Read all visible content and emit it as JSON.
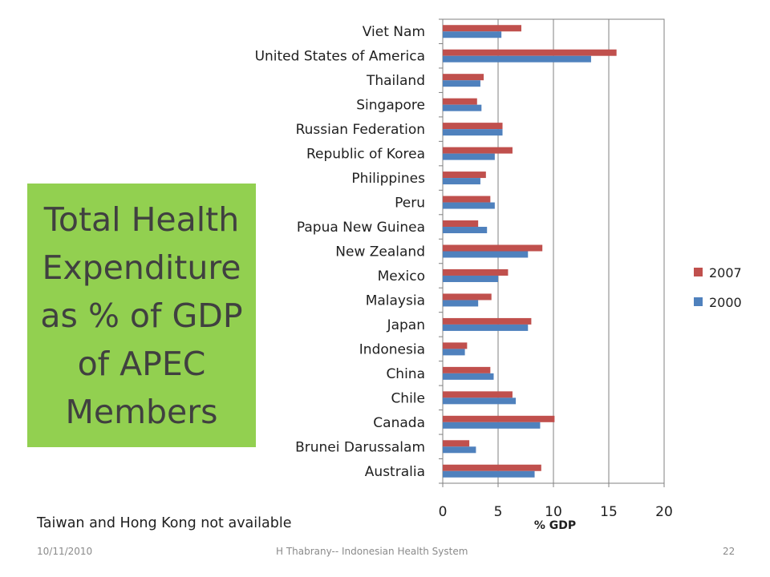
{
  "slide_title": "Total Health Expenditure as % of GDP of APEC Members",
  "note": "Taiwan and Hong Kong not available",
  "footer": {
    "date": "10/11/2010",
    "center": "H Thabrany-- Indonesian Health System",
    "page": "22"
  },
  "colors": {
    "s2007": "#c0504d",
    "s2000": "#4f81bd",
    "title_bg": "#92d050",
    "gridline": "#808080"
  },
  "chart_data": {
    "type": "bar",
    "orientation": "horizontal",
    "categories": [
      "Australia",
      "Brunei Darussalam",
      "Canada",
      "Chile",
      "China",
      "Indonesia",
      "Japan",
      "Malaysia",
      "Mexico",
      "New Zealand",
      "Papua New Guinea",
      "Peru",
      "Philippines",
      "Republic of Korea",
      "Russian Federation",
      "Singapore",
      "Thailand",
      "United States of America",
      "Viet Nam"
    ],
    "series": [
      {
        "name": "2007",
        "values": [
          8.9,
          2.4,
          10.1,
          6.3,
          4.3,
          2.2,
          8.0,
          4.4,
          5.9,
          9.0,
          3.2,
          4.3,
          3.9,
          6.3,
          5.4,
          3.1,
          3.7,
          15.7,
          7.1
        ]
      },
      {
        "name": "2000",
        "values": [
          8.3,
          3.0,
          8.8,
          6.6,
          4.6,
          2.0,
          7.7,
          3.2,
          5.0,
          7.7,
          4.0,
          4.7,
          3.4,
          4.7,
          5.4,
          3.5,
          3.4,
          13.4,
          5.3
        ]
      }
    ],
    "xlabel": "% GDP",
    "xlim": [
      0,
      20
    ],
    "xticks": [
      "0",
      "5",
      "10",
      "15",
      "20"
    ],
    "grid": true,
    "legend_position": "right"
  }
}
